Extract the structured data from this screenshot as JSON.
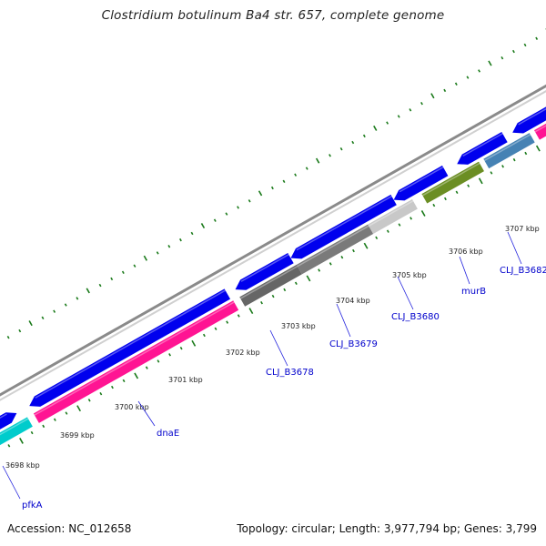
{
  "title": "Clostridium botulinum Ba4 str. 657, complete genome",
  "accession": "Accession: NC_012658",
  "summary": "Topology: circular; Length: 3,977,794 bp; Genes: 3,799",
  "colors": {
    "cds": "#0000ee",
    "rRNA_like": "#ff1493",
    "cyan": "#00cccc",
    "dark_gray": "#666666",
    "mid_gray": "#7a7a7a",
    "light_gray": "#c8c8c8",
    "olive": "#6b8e23",
    "steel": "#4682b4",
    "backbone": "#999999",
    "dots": "#1a7a1a",
    "gene_label": "#0000cc"
  },
  "tick_labels": [
    "3698 kbp",
    "3699 kbp",
    "3700 kbp",
    "3701 kbp",
    "3702 kbp",
    "3703 kbp",
    "3704 kbp",
    "3705 kbp",
    "3706 kbp",
    "3707 kbp"
  ],
  "gene_labels": [
    "pfkA",
    "dnaE",
    "CLJ_B3678",
    "CLJ_B3679",
    "CLJ_B3680",
    "murB",
    "CLJ_B3682"
  ]
}
